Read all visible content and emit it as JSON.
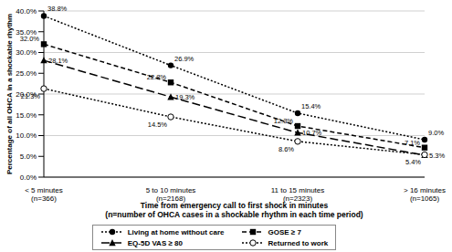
{
  "chart_data": {
    "type": "line",
    "y_label": "Percentage of all OHCA in a shockable rhythm",
    "x_label": "Time from emergency call to first shock in minutes\n(n=number of OHCA cases in a shockable rhythm in each time period)",
    "categories": [
      "< 5 minutes\n(n=366)",
      "5 to 10 minutes\n(n=2168)",
      "11 to 15 minutes\n(n=2323)",
      "> 16 minutes\n(n=1065)"
    ],
    "series": [
      {
        "name": "Living at home without care",
        "color": "#000000",
        "marker": "circle",
        "line_style": "dotted",
        "values": [
          38.8,
          26.9,
          15.4,
          9.0
        ],
        "value_labels": [
          "38.8%",
          "26.9%",
          "15.4%",
          "9.0%"
        ]
      },
      {
        "name": "GOSE ≥ 7",
        "color": "#000000",
        "marker": "square",
        "line_style": "dashed",
        "values": [
          32.0,
          22.8,
          12.3,
          7.1
        ],
        "value_labels": [
          "32.0%",
          "22.8%",
          "12.3%",
          "7.1%"
        ]
      },
      {
        "name": "EQ-5D VAS ≥ 80",
        "color": "#000000",
        "marker": "triangle",
        "line_style": "longdash",
        "values": [
          28.1,
          19.3,
          10.7,
          5.3
        ],
        "value_labels": [
          "28.1%",
          "19.3%",
          "10.7%",
          "5.3%"
        ]
      },
      {
        "name": "Returned to work",
        "color": "#000000",
        "marker": "open_circle",
        "line_style": "dotted",
        "values": [
          21.3,
          14.5,
          8.6,
          5.4
        ],
        "value_labels": [
          "21.3%",
          "14.5%",
          "8.6%",
          "5.4%"
        ]
      }
    ],
    "ylim": [
      0,
      40
    ],
    "yticks": [
      {
        "value": 0,
        "label": "0.0%"
      },
      {
        "value": 5,
        "label": "5.0%"
      },
      {
        "value": 10,
        "label": "10.0%"
      },
      {
        "value": 15,
        "label": "15.0%"
      },
      {
        "value": 20,
        "label": "20.0%"
      },
      {
        "value": 25,
        "label": "25.0%"
      },
      {
        "value": 30,
        "label": "30.0%"
      },
      {
        "value": 35,
        "label": "35.0%"
      },
      {
        "value": 40,
        "label": "40.0%"
      }
    ],
    "grid": true,
    "legend": "bottom",
    "data_labels": true
  }
}
